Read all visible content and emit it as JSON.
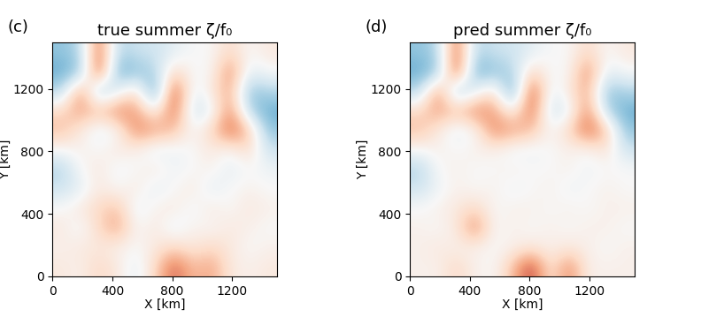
{
  "chart_data": [
    {
      "type": "heatmap",
      "annotation": "(c)",
      "title": "true summer ζ/f₀",
      "x_label": "X [km]",
      "y_label": "Y [km]",
      "xlim": [
        0,
        1500
      ],
      "ylim": [
        0,
        1500
      ],
      "xticks": [
        0,
        400,
        800,
        1200
      ],
      "yticks": [
        0,
        400,
        800,
        1200
      ],
      "color_range": [
        -1,
        1
      ],
      "cells": [
        [
          0.1,
          0.05,
          0.2,
          0.1,
          -0.1,
          0.2,
          0.6,
          0.3,
          0.4,
          0.1,
          0.05,
          0.1
        ],
        [
          0.05,
          0.1,
          0.1,
          0.05,
          0.0,
          0.1,
          0.2,
          0.1,
          0.2,
          0.1,
          0.0,
          0.05
        ],
        [
          0.1,
          -0.05,
          0.2,
          0.4,
          0.0,
          0.1,
          -0.1,
          0.05,
          0.0,
          0.1,
          0.05,
          0.0
        ],
        [
          0.0,
          0.1,
          0.2,
          0.3,
          -0.1,
          0.05,
          0.1,
          -0.05,
          0.1,
          0.0,
          0.1,
          0.05
        ],
        [
          -0.2,
          -0.1,
          0.1,
          0.0,
          0.1,
          -0.1,
          0.0,
          0.1,
          -0.1,
          0.0,
          0.05,
          0.0
        ],
        [
          -0.3,
          0.0,
          0.1,
          -0.05,
          0.0,
          0.1,
          -0.05,
          0.0,
          0.05,
          -0.1,
          0.0,
          -0.05
        ],
        [
          0.0,
          0.05,
          0.0,
          0.1,
          0.05,
          -0.1,
          -0.05,
          0.0,
          0.1,
          0.0,
          0.2,
          -0.2
        ],
        [
          0.3,
          0.1,
          -0.1,
          0.0,
          0.5,
          0.4,
          0.3,
          0.0,
          0.2,
          0.6,
          0.3,
          -0.4
        ],
        [
          0.2,
          0.4,
          0.3,
          0.5,
          0.4,
          0.0,
          0.6,
          -0.2,
          -0.1,
          0.5,
          -0.3,
          -0.5
        ],
        [
          -0.3,
          0.5,
          -0.4,
          -0.1,
          0.2,
          -0.6,
          0.7,
          -0.1,
          0.1,
          0.4,
          -0.4,
          -0.3
        ],
        [
          -0.5,
          -0.4,
          0.7,
          -0.5,
          -0.4,
          -0.3,
          0.2,
          0.0,
          0.0,
          0.5,
          -0.1,
          0.0
        ],
        [
          -0.4,
          -0.3,
          0.6,
          -0.3,
          -0.2,
          -0.2,
          -0.1,
          0.0,
          0.0,
          0.2,
          0.0,
          0.1
        ]
      ]
    },
    {
      "type": "heatmap",
      "annotation": "(d)",
      "title": "pred summer ζ/f₀",
      "x_label": "X [km]",
      "y_label": "Y [km]",
      "xlim": [
        0,
        1500
      ],
      "ylim": [
        0,
        1500
      ],
      "xticks": [
        0,
        400,
        800,
        1200
      ],
      "yticks": [
        0,
        400,
        800,
        1200
      ],
      "color_range": [
        -1,
        1
      ],
      "cells": [
        [
          0.05,
          0.05,
          0.2,
          0.05,
          0.0,
          0.3,
          0.7,
          0.1,
          0.5,
          0.05,
          0.05,
          0.05
        ],
        [
          0.05,
          0.1,
          0.05,
          0.05,
          0.0,
          0.05,
          0.1,
          0.05,
          0.1,
          0.05,
          0.0,
          0.05
        ],
        [
          0.05,
          0.0,
          0.1,
          0.5,
          0.0,
          0.05,
          0.0,
          0.05,
          0.0,
          0.05,
          0.05,
          0.0
        ],
        [
          0.0,
          0.05,
          0.1,
          0.2,
          0.0,
          0.05,
          0.05,
          0.0,
          0.05,
          0.0,
          0.05,
          0.05
        ],
        [
          -0.2,
          -0.05,
          0.05,
          0.0,
          0.05,
          -0.05,
          0.0,
          0.05,
          -0.05,
          0.0,
          0.05,
          0.0
        ],
        [
          -0.3,
          0.0,
          0.05,
          0.0,
          0.0,
          0.05,
          0.0,
          0.0,
          0.05,
          -0.05,
          0.0,
          0.0
        ],
        [
          0.0,
          0.05,
          0.0,
          0.05,
          0.05,
          -0.05,
          -0.05,
          0.0,
          0.05,
          0.0,
          0.15,
          -0.2
        ],
        [
          0.3,
          0.1,
          -0.1,
          0.0,
          0.5,
          0.4,
          0.3,
          0.0,
          0.2,
          0.6,
          0.3,
          -0.4
        ],
        [
          0.2,
          0.4,
          0.3,
          0.5,
          0.4,
          0.0,
          0.6,
          -0.2,
          -0.1,
          0.5,
          -0.3,
          -0.5
        ],
        [
          -0.3,
          0.5,
          -0.4,
          -0.1,
          0.2,
          -0.6,
          0.7,
          -0.1,
          0.1,
          0.4,
          -0.4,
          -0.3
        ],
        [
          -0.5,
          -0.4,
          0.7,
          -0.5,
          -0.4,
          -0.3,
          0.2,
          0.0,
          0.0,
          0.5,
          -0.1,
          0.0
        ],
        [
          -0.4,
          -0.3,
          0.6,
          -0.3,
          -0.2,
          -0.2,
          -0.1,
          0.0,
          0.0,
          0.2,
          0.0,
          0.1
        ]
      ]
    }
  ]
}
